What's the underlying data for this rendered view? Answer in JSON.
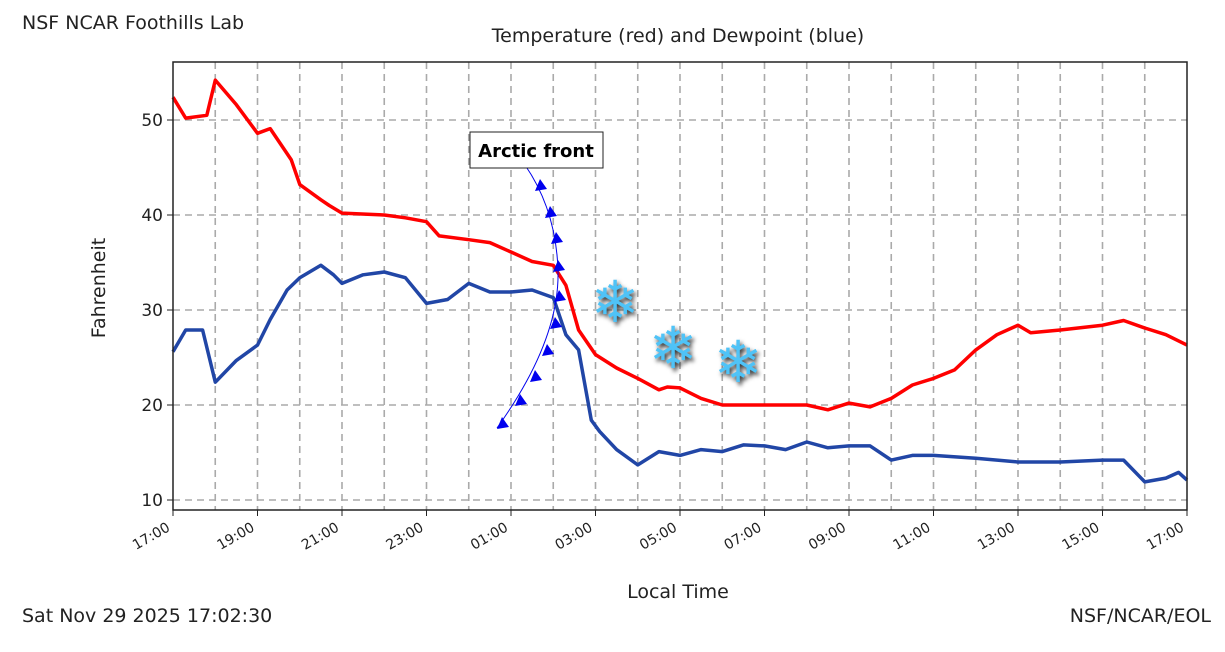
{
  "header": {
    "station": "NSF NCAR Foothills Lab"
  },
  "footer": {
    "timestamp": "Sat Nov 29 2025 17:02:30",
    "credit": "NSF/NCAR/EOL"
  },
  "annotations": {
    "front_label": "Arctic front",
    "snow_icon": "snowflake-icon"
  },
  "colors": {
    "temperature": "#ff0000",
    "dewpoint": "#2146a6",
    "front": "#0000ee",
    "snow": "#4fc3f7"
  },
  "chart_data": {
    "type": "line",
    "title": "Temperature (red) and Dewpoint (blue)",
    "xlabel": "Local Time",
    "ylabel": "Fahrenheit",
    "xlim_hours_after_start": [
      0,
      24
    ],
    "ylim": [
      9,
      56
    ],
    "yticks": [
      10,
      20,
      30,
      40,
      50
    ],
    "xtick_labels": [
      "17:00",
      "19:00",
      "21:00",
      "23:00",
      "01:00",
      "03:00",
      "05:00",
      "07:00",
      "09:00",
      "11:00",
      "13:00",
      "15:00",
      "17:00"
    ],
    "grid": true,
    "series": [
      {
        "name": "Temperature",
        "color": "red",
        "x": [
          0,
          0.3,
          0.8,
          1,
          1.5,
          2,
          2.3,
          2.8,
          3,
          3.5,
          3.7,
          4,
          5,
          5.5,
          6,
          6.3,
          7,
          7.5,
          8,
          8.5,
          9,
          9.3,
          9.6,
          10,
          10.5,
          11,
          11.5,
          11.7,
          12,
          12.5,
          13,
          14,
          15,
          15.5,
          16,
          16.5,
          17,
          17.5,
          18,
          18.5,
          19,
          19.5,
          20,
          20.3,
          21,
          22,
          22.5,
          23,
          23.5,
          24
        ],
        "y": [
          52.4,
          50.2,
          50.5,
          54.2,
          51.6,
          48.6,
          49.1,
          45.8,
          43.2,
          41.6,
          41.0,
          40.2,
          40.0,
          39.7,
          39.3,
          37.8,
          37.4,
          37.1,
          36.1,
          35.1,
          34.7,
          32.6,
          27.9,
          25.3,
          23.9,
          22.8,
          21.6,
          21.9,
          21.8,
          20.7,
          20.0,
          20.0,
          20.0,
          19.5,
          20.2,
          19.8,
          20.7,
          22.1,
          22.8,
          23.7,
          25.8,
          27.4,
          28.4,
          27.6,
          27.9,
          28.4,
          28.9,
          28.1,
          27.4,
          26.3
        ]
      },
      {
        "name": "Dewpoint",
        "color": "blue",
        "x": [
          0,
          0.3,
          0.7,
          1,
          1.5,
          2,
          2.3,
          2.7,
          3,
          3.5,
          3.8,
          4,
          4.5,
          5,
          5.5,
          6,
          6.5,
          7,
          7.5,
          8,
          8.5,
          9,
          9.3,
          9.6,
          9.9,
          10.1,
          10.5,
          11,
          11.5,
          12,
          12.5,
          13,
          13.5,
          14,
          14.5,
          15,
          15.5,
          16,
          16.5,
          17,
          17.5,
          18,
          19,
          20,
          21,
          22,
          22.5,
          23,
          23.5,
          23.8,
          24
        ],
        "y": [
          25.6,
          27.9,
          27.9,
          22.4,
          24.7,
          26.3,
          29.0,
          32.1,
          33.4,
          34.7,
          33.7,
          32.8,
          33.7,
          34.0,
          33.4,
          30.7,
          31.1,
          32.8,
          31.9,
          31.9,
          32.1,
          31.3,
          27.4,
          25.8,
          18.4,
          17.2,
          15.3,
          13.7,
          15.1,
          14.7,
          15.3,
          15.1,
          15.8,
          15.7,
          15.3,
          16.1,
          15.5,
          15.7,
          15.7,
          14.2,
          14.7,
          14.7,
          14.4,
          14.0,
          14.0,
          14.2,
          14.2,
          11.9,
          12.3,
          12.9,
          12.1
        ]
      }
    ]
  }
}
